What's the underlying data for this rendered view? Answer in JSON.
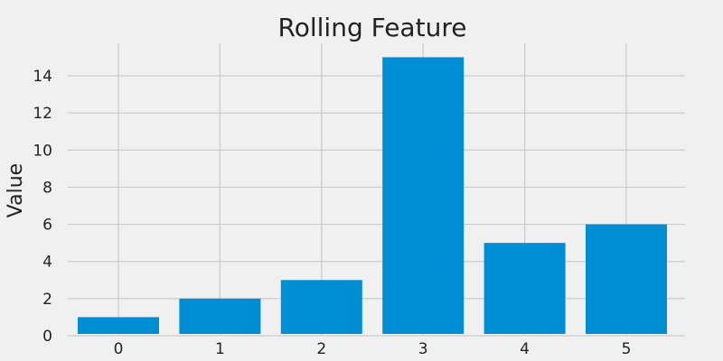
{
  "chart_data": {
    "type": "bar",
    "title": "Rolling Feature",
    "xlabel": "",
    "ylabel": "Value",
    "categories": [
      "0",
      "1",
      "2",
      "3",
      "4",
      "5"
    ],
    "values": [
      1,
      2,
      3,
      15,
      5,
      6
    ],
    "ylim": [
      0,
      15.75
    ],
    "yticks": [
      0,
      2,
      4,
      6,
      8,
      10,
      12,
      14
    ],
    "grid": true,
    "bar_color": "#008fd5",
    "background_color": "#f0f0f0",
    "grid_color": "#cbcbcb"
  }
}
